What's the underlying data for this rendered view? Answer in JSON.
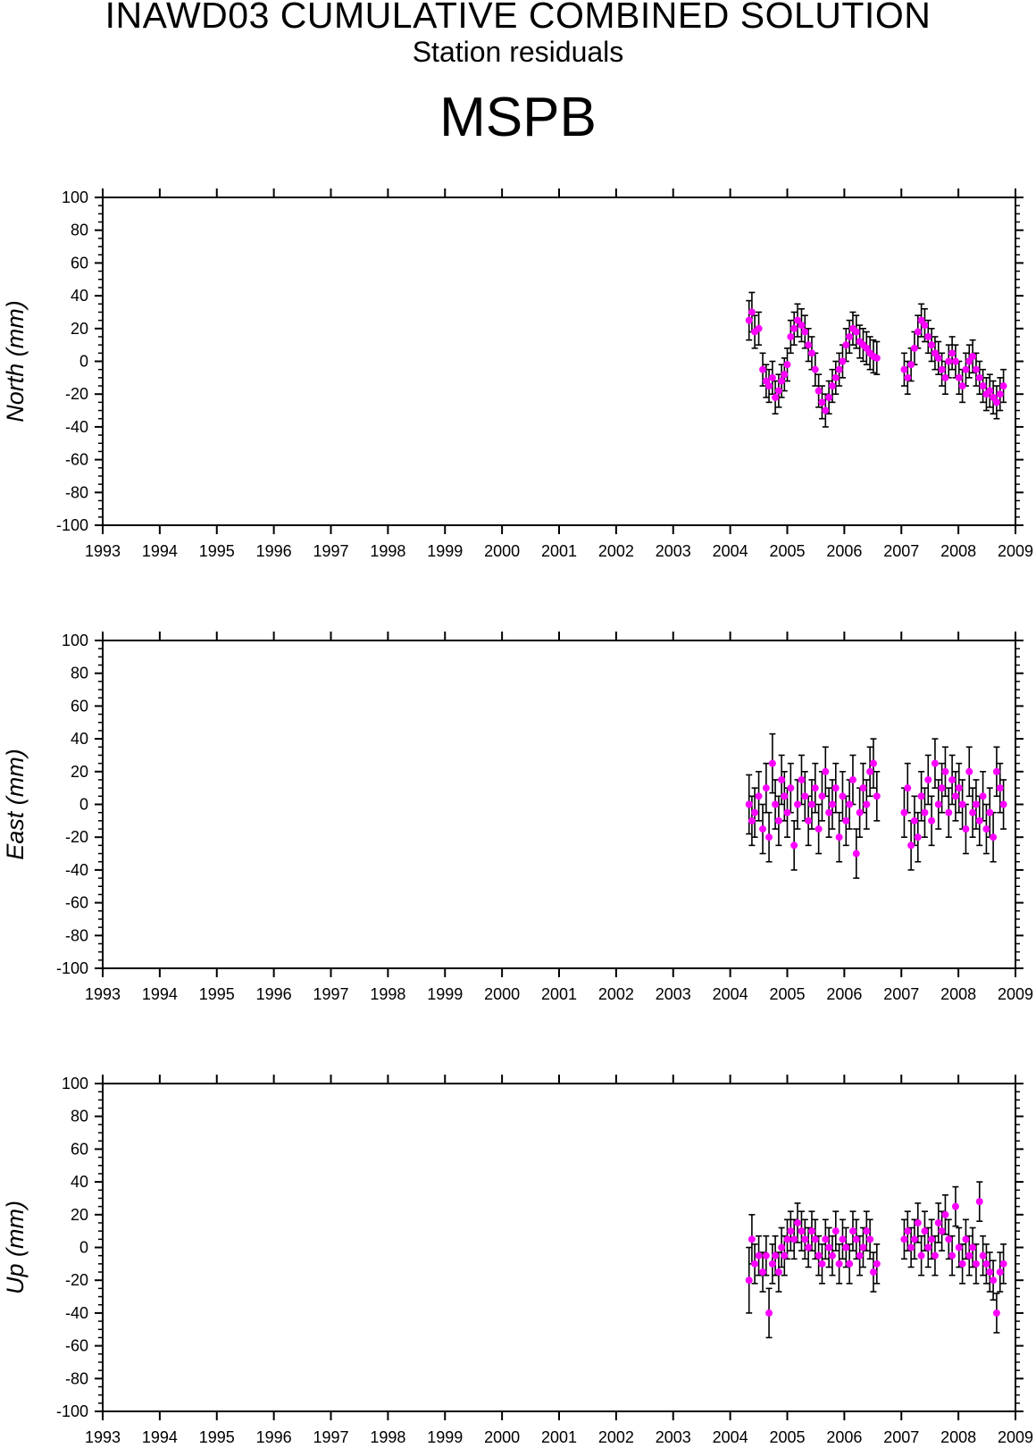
{
  "title": "INAWD03 CUMULATIVE COMBINED SOLUTION",
  "subtitle": "Station residuals",
  "station": "MSPB",
  "colors": {
    "point": "#ff00ff",
    "errorbar": "#000000",
    "axis": "#000000"
  },
  "chart_data": [
    {
      "type": "scatter",
      "title": "",
      "xlabel": "",
      "ylabel": "North (mm)",
      "xlim": [
        1993,
        2009
      ],
      "ylim": [
        -100,
        100
      ],
      "xticks": [
        "1993",
        "1994",
        "1995",
        "1996",
        "1997",
        "1998",
        "1999",
        "2000",
        "2001",
        "2002",
        "2003",
        "2004",
        "2005",
        "2006",
        "2007",
        "2008",
        "2009"
      ],
      "yticks": [
        "100",
        "80",
        "60",
        "40",
        "20",
        "0",
        "-20",
        "-40",
        "-60",
        "-80",
        "-100"
      ],
      "grid": false,
      "error_bars": true,
      "series": [
        {
          "x": [
            2004.33,
            2004.38,
            2004.43,
            2004.5,
            2004.57,
            2004.63,
            2004.68,
            2004.74,
            2004.79,
            2004.85,
            2004.9,
            2004.95,
            2005.0,
            2005.06,
            2005.12,
            2005.18,
            2005.25,
            2005.31,
            2005.37,
            2005.43,
            2005.49,
            2005.55,
            2005.61,
            2005.67,
            2005.73,
            2005.79,
            2005.85,
            2005.91,
            2005.97,
            2006.03,
            2006.09,
            2006.15,
            2006.21,
            2006.27,
            2006.33,
            2006.39,
            2006.45,
            2006.51,
            2006.57,
            2007.05,
            2007.11,
            2007.17,
            2007.23,
            2007.29,
            2007.35,
            2007.41,
            2007.47,
            2007.53,
            2007.59,
            2007.65,
            2007.71,
            2007.77,
            2007.83,
            2007.89,
            2007.95,
            2008.01,
            2008.07,
            2008.13,
            2008.19,
            2008.25,
            2008.31,
            2008.37,
            2008.43,
            2008.49,
            2008.55,
            2008.61,
            2008.67,
            2008.73,
            2008.79
          ],
          "y": [
            25,
            30,
            18,
            20,
            -5,
            -12,
            -15,
            -10,
            -22,
            -18,
            -12,
            -8,
            -2,
            15,
            20,
            25,
            22,
            18,
            10,
            5,
            -5,
            -18,
            -25,
            -30,
            -22,
            -15,
            -10,
            -5,
            0,
            10,
            15,
            20,
            18,
            12,
            10,
            8,
            5,
            3,
            2,
            -5,
            -10,
            -2,
            8,
            18,
            25,
            22,
            15,
            10,
            5,
            2,
            -5,
            -10,
            0,
            5,
            0,
            -10,
            -15,
            -5,
            0,
            3,
            -5,
            -10,
            -15,
            -20,
            -18,
            -22,
            -25,
            -20,
            -15
          ],
          "err": [
            12,
            12,
            10,
            10,
            10,
            10,
            10,
            10,
            10,
            10,
            10,
            10,
            10,
            10,
            10,
            10,
            10,
            10,
            10,
            10,
            10,
            10,
            10,
            10,
            10,
            10,
            10,
            10,
            10,
            10,
            10,
            10,
            10,
            10,
            10,
            10,
            10,
            10,
            10,
            10,
            10,
            10,
            10,
            10,
            10,
            10,
            10,
            10,
            10,
            10,
            10,
            10,
            10,
            10,
            10,
            10,
            10,
            10,
            10,
            10,
            10,
            10,
            10,
            10,
            10,
            10,
            10,
            10,
            10
          ]
        }
      ]
    },
    {
      "type": "scatter",
      "title": "",
      "xlabel": "",
      "ylabel": "East (mm)",
      "xlim": [
        1993,
        2009
      ],
      "ylim": [
        -100,
        100
      ],
      "xticks": [
        "1993",
        "1994",
        "1995",
        "1996",
        "1997",
        "1998",
        "1999",
        "2000",
        "2001",
        "2002",
        "2003",
        "2004",
        "2005",
        "2006",
        "2007",
        "2008",
        "2009"
      ],
      "yticks": [
        "100",
        "80",
        "60",
        "40",
        "20",
        "0",
        "-20",
        "-40",
        "-60",
        "-80",
        "-100"
      ],
      "grid": false,
      "error_bars": true,
      "series": [
        {
          "x": [
            2004.33,
            2004.38,
            2004.43,
            2004.5,
            2004.57,
            2004.63,
            2004.68,
            2004.74,
            2004.79,
            2004.85,
            2004.9,
            2004.95,
            2005.0,
            2005.06,
            2005.12,
            2005.18,
            2005.25,
            2005.31,
            2005.37,
            2005.43,
            2005.49,
            2005.55,
            2005.61,
            2005.67,
            2005.73,
            2005.79,
            2005.85,
            2005.91,
            2005.97,
            2006.03,
            2006.09,
            2006.15,
            2006.21,
            2006.27,
            2006.33,
            2006.39,
            2006.45,
            2006.51,
            2006.57,
            2007.05,
            2007.11,
            2007.17,
            2007.23,
            2007.29,
            2007.35,
            2007.41,
            2007.47,
            2007.53,
            2007.59,
            2007.65,
            2007.71,
            2007.77,
            2007.83,
            2007.89,
            2007.95,
            2008.01,
            2008.07,
            2008.13,
            2008.19,
            2008.25,
            2008.31,
            2008.37,
            2008.43,
            2008.49,
            2008.55,
            2008.61,
            2008.67,
            2008.73,
            2008.79
          ],
          "y": [
            0,
            -10,
            -5,
            5,
            -15,
            10,
            -20,
            25,
            0,
            -10,
            15,
            5,
            -5,
            10,
            -25,
            0,
            15,
            5,
            -10,
            0,
            10,
            -15,
            5,
            20,
            -5,
            0,
            10,
            -20,
            5,
            -10,
            0,
            15,
            -30,
            -5,
            10,
            0,
            20,
            25,
            5,
            -5,
            10,
            -25,
            -10,
            -20,
            5,
            -5,
            15,
            -10,
            25,
            0,
            10,
            20,
            -5,
            15,
            5,
            10,
            0,
            -15,
            20,
            -5,
            0,
            -10,
            5,
            -15,
            -5,
            -20,
            20,
            10,
            0
          ],
          "err": [
            18,
            15,
            15,
            15,
            15,
            15,
            15,
            18,
            15,
            15,
            15,
            15,
            15,
            15,
            15,
            15,
            15,
            15,
            15,
            15,
            15,
            15,
            15,
            15,
            15,
            15,
            15,
            15,
            15,
            15,
            15,
            15,
            15,
            15,
            15,
            15,
            15,
            15,
            15,
            15,
            15,
            15,
            15,
            15,
            15,
            15,
            15,
            15,
            15,
            15,
            15,
            15,
            15,
            15,
            15,
            15,
            15,
            15,
            15,
            15,
            15,
            15,
            15,
            15,
            15,
            15,
            15,
            15,
            15
          ]
        }
      ]
    },
    {
      "type": "scatter",
      "title": "",
      "xlabel": "",
      "ylabel": "Up (mm)",
      "xlim": [
        1993,
        2009
      ],
      "ylim": [
        -100,
        100
      ],
      "xticks": [
        "1993",
        "1994",
        "1995",
        "1996",
        "1997",
        "1998",
        "1999",
        "2000",
        "2001",
        "2002",
        "2003",
        "2004",
        "2005",
        "2006",
        "2007",
        "2008",
        "2009"
      ],
      "yticks": [
        "100",
        "80",
        "60",
        "40",
        "20",
        "0",
        "-20",
        "-40",
        "-60",
        "-80",
        "-100"
      ],
      "grid": false,
      "error_bars": true,
      "series": [
        {
          "x": [
            2004.33,
            2004.38,
            2004.43,
            2004.5,
            2004.57,
            2004.63,
            2004.68,
            2004.74,
            2004.79,
            2004.85,
            2004.9,
            2004.95,
            2005.0,
            2005.06,
            2005.12,
            2005.18,
            2005.25,
            2005.31,
            2005.37,
            2005.43,
            2005.49,
            2005.55,
            2005.61,
            2005.67,
            2005.73,
            2005.79,
            2005.85,
            2005.91,
            2005.97,
            2006.03,
            2006.09,
            2006.15,
            2006.21,
            2006.27,
            2006.33,
            2006.39,
            2006.45,
            2006.51,
            2006.57,
            2007.05,
            2007.11,
            2007.17,
            2007.23,
            2007.29,
            2007.35,
            2007.41,
            2007.47,
            2007.53,
            2007.59,
            2007.65,
            2007.71,
            2007.77,
            2007.83,
            2007.89,
            2007.95,
            2008.01,
            2008.07,
            2008.13,
            2008.19,
            2008.25,
            2008.31,
            2008.37,
            2008.43,
            2008.49,
            2008.55,
            2008.61,
            2008.67,
            2008.73,
            2008.79
          ],
          "y": [
            -20,
            5,
            -10,
            -5,
            -15,
            -5,
            -40,
            -10,
            -5,
            -15,
            0,
            -5,
            5,
            10,
            5,
            15,
            10,
            5,
            0,
            10,
            5,
            -5,
            -10,
            5,
            0,
            -5,
            10,
            -10,
            5,
            0,
            -10,
            10,
            5,
            -5,
            0,
            10,
            5,
            -15,
            -10,
            5,
            10,
            0,
            5,
            15,
            -5,
            10,
            0,
            5,
            -5,
            15,
            10,
            20,
            5,
            -5,
            25,
            0,
            -10,
            5,
            -5,
            0,
            -10,
            28,
            -5,
            -10,
            -15,
            -20,
            -40,
            -15,
            -10
          ],
          "err": [
            20,
            15,
            12,
            12,
            12,
            12,
            15,
            12,
            12,
            12,
            12,
            12,
            12,
            12,
            12,
            12,
            12,
            12,
            12,
            12,
            12,
            12,
            12,
            12,
            12,
            12,
            12,
            12,
            12,
            12,
            12,
            12,
            12,
            12,
            12,
            12,
            12,
            12,
            12,
            12,
            12,
            12,
            12,
            12,
            12,
            12,
            12,
            12,
            12,
            12,
            12,
            12,
            12,
            12,
            12,
            12,
            12,
            12,
            12,
            12,
            12,
            12,
            12,
            12,
            12,
            12,
            12,
            12,
            12
          ]
        }
      ]
    }
  ]
}
